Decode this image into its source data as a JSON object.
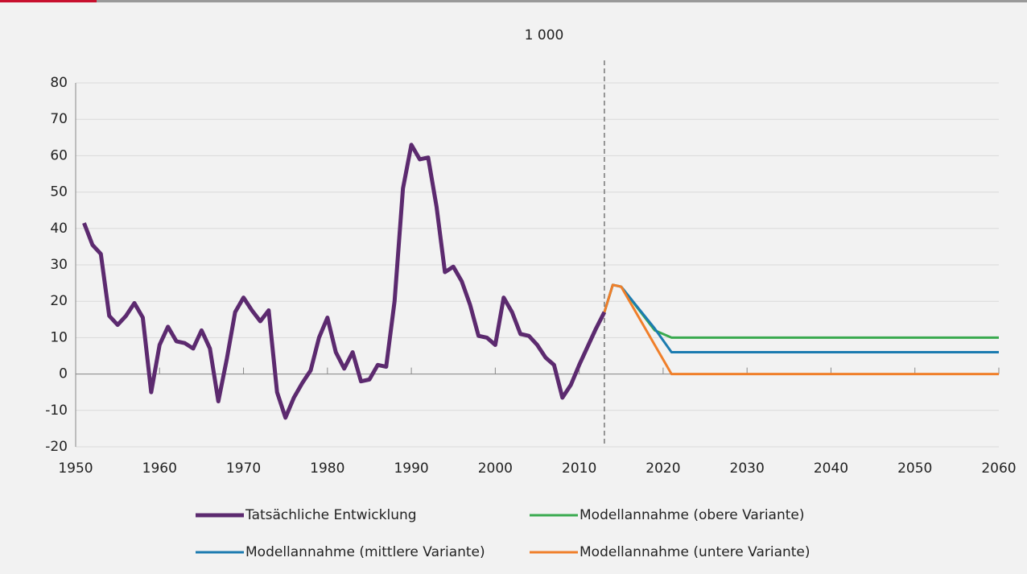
{
  "chart_data": {
    "type": "line",
    "title": "1 000",
    "xlim": [
      1950,
      2060
    ],
    "xticks": [
      1950,
      1960,
      1970,
      1980,
      1990,
      2000,
      2010,
      2020,
      2030,
      2040,
      2050,
      2060
    ],
    "ylim": [
      -20,
      80
    ],
    "yticks": [
      -20,
      -10,
      0,
      10,
      20,
      30,
      40,
      50,
      60,
      70,
      80
    ],
    "grid": true,
    "reference_line_x": 2013,
    "series": [
      {
        "name": "Tatsächliche Entwicklung",
        "color": "#5c2a6f",
        "x": [
          1951,
          1952,
          1953,
          1954,
          1955,
          1956,
          1957,
          1958,
          1959,
          1960,
          1961,
          1962,
          1963,
          1964,
          1965,
          1966,
          1967,
          1968,
          1969,
          1970,
          1971,
          1972,
          1973,
          1974,
          1975,
          1976,
          1977,
          1978,
          1979,
          1980,
          1981,
          1982,
          1983,
          1984,
          1985,
          1986,
          1987,
          1988,
          1989,
          1990,
          1991,
          1992,
          1993,
          1994,
          1995,
          1996,
          1997,
          1998,
          1999,
          2000,
          2001,
          2002,
          2003,
          2004,
          2005,
          2006,
          2007,
          2008,
          2009,
          2010,
          2011,
          2012,
          2013
        ],
        "values": [
          41.5,
          35.5,
          33,
          16,
          13.5,
          16,
          19.5,
          15.5,
          -5,
          8,
          13,
          9,
          8.5,
          7,
          12,
          7,
          -7.5,
          4,
          17,
          21,
          17.5,
          14.5,
          17.5,
          -5,
          -12,
          -6.5,
          -2.5,
          1,
          10,
          15.5,
          6,
          1.5,
          6,
          -2,
          -1.5,
          2.5,
          2,
          20,
          51,
          63,
          59,
          59.5,
          46,
          28,
          29.5,
          25.5,
          19,
          10.5,
          10,
          8,
          21,
          17,
          11,
          10.5,
          8,
          4.5,
          2.5,
          -6.5,
          -3,
          2.5,
          7.5,
          12.5,
          17
        ]
      },
      {
        "name": "Modellannahme (obere Variante)",
        "color": "#3aaa4f",
        "x": [
          2013,
          2014,
          2015,
          2019,
          2021,
          2060
        ],
        "values": [
          17,
          24.5,
          24,
          12,
          10,
          10
        ]
      },
      {
        "name": "Modellannahme (mittlere Variante)",
        "color": "#1b7bb0",
        "x": [
          2013,
          2014,
          2015,
          2019,
          2021,
          2060
        ],
        "values": [
          17,
          24.5,
          24,
          12.5,
          6,
          6
        ]
      },
      {
        "name": "Modellannahme (untere Variante)",
        "color": "#f07f2a",
        "x": [
          2013,
          2014,
          2015,
          2019,
          2021,
          2060
        ],
        "values": [
          17,
          24.5,
          24,
          8,
          0,
          0
        ]
      }
    ]
  }
}
